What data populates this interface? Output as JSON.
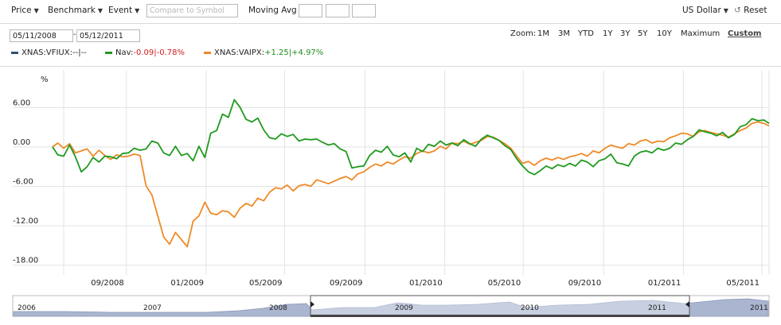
{
  "toolbar": {
    "price_label": "Price",
    "benchmark_label": "Benchmark",
    "event_label": "Event",
    "compare_placeholder": "Compare to Symbol",
    "moving_avg_label": "Moving Avg",
    "currency_label": "US Dollar",
    "reset_label": "Reset"
  },
  "date_range": {
    "start": "05/11/2008",
    "end": "05/12/2011",
    "dash": "-"
  },
  "zoom": {
    "label": "Zoom:",
    "options": [
      "1M",
      "3M",
      "YTD",
      "1Y",
      "3Y",
      "5Y",
      "10Y",
      "Maximum",
      "Custom"
    ],
    "active": "Custom"
  },
  "legend": [
    {
      "symbol": "XNAS:VFIUX:",
      "value_text": "--|--",
      "color": "#2f4f6f",
      "value_class": ""
    },
    {
      "symbol": "Nav:",
      "value_text": "-0.09|-0.78%",
      "color": "#1f9a1f",
      "value_class": "neg"
    },
    {
      "symbol": "XNAS:VAIPX:",
      "value_text": "+1.25|+4.97%",
      "color": "#ef8a28",
      "value_class": "pos"
    }
  ],
  "colors": {
    "nav": "#1f9a1f",
    "vaipx": "#ef8a28",
    "vfiux": "#2f4f6f",
    "grid": "#e3e3e3",
    "nav_fill": "#aab5cf"
  },
  "chart_data": {
    "type": "line",
    "ylabel": "%",
    "ylim": [
      -19,
      11
    ],
    "yticks": [
      6,
      0,
      -6,
      -12,
      -18
    ],
    "ytick_labels": [
      "6.00",
      "0.00",
      "-6.00",
      "-12.00",
      "-18.00"
    ],
    "xlim": [
      "2008-05-11",
      "2011-05-12"
    ],
    "xticks": [
      "2008-09-01",
      "2009-01-01",
      "2009-05-01",
      "2009-09-01",
      "2010-01-01",
      "2010-05-01",
      "2010-09-01",
      "2011-01-01",
      "2011-05-01"
    ],
    "xtick_labels": [
      "09/2008",
      "01/2009",
      "05/2009",
      "09/2009",
      "01/2010",
      "05/2010",
      "09/2010",
      "01/2011",
      "05/2011"
    ],
    "grid": true,
    "legend_position": "top-left",
    "series": [
      {
        "name": "Nav",
        "color": "#1f9a1f",
        "points": [
          [
            "2008-05-11",
            0
          ],
          [
            "2008-05-19",
            -1.2
          ],
          [
            "2008-05-28",
            -1.4
          ],
          [
            "2008-06-06",
            0.3
          ],
          [
            "2008-06-15",
            -1.5
          ],
          [
            "2008-06-24",
            -3.8
          ],
          [
            "2008-07-03",
            -3.0
          ],
          [
            "2008-07-12",
            -1.6
          ],
          [
            "2008-07-21",
            -2.3
          ],
          [
            "2008-07-30",
            -1.4
          ],
          [
            "2008-08-08",
            -1.5
          ],
          [
            "2008-08-17",
            -1.8
          ],
          [
            "2008-08-26",
            -1.0
          ],
          [
            "2008-09-04",
            -0.9
          ],
          [
            "2008-09-13",
            -0.2
          ],
          [
            "2008-09-22",
            -0.5
          ],
          [
            "2008-10-01",
            -0.3
          ],
          [
            "2008-10-10",
            0.9
          ],
          [
            "2008-10-19",
            0.6
          ],
          [
            "2008-10-28",
            -0.9
          ],
          [
            "2008-11-06",
            -1.3
          ],
          [
            "2008-11-15",
            0.1
          ],
          [
            "2008-11-24",
            -1.3
          ],
          [
            "2008-12-03",
            -1.0
          ],
          [
            "2008-12-12",
            -2.1
          ],
          [
            "2008-12-21",
            0.1
          ],
          [
            "2008-12-30",
            -1.6
          ],
          [
            "2009-01-08",
            2.1
          ],
          [
            "2009-01-17",
            2.5
          ],
          [
            "2009-01-26",
            5.0
          ],
          [
            "2009-02-04",
            4.5
          ],
          [
            "2009-02-13",
            7.2
          ],
          [
            "2009-02-22",
            6.0
          ],
          [
            "2009-03-03",
            4.2
          ],
          [
            "2009-03-12",
            3.8
          ],
          [
            "2009-03-21",
            4.4
          ],
          [
            "2009-03-30",
            2.6
          ],
          [
            "2009-04-08",
            1.4
          ],
          [
            "2009-04-17",
            1.2
          ],
          [
            "2009-04-26",
            2.0
          ],
          [
            "2009-05-05",
            1.6
          ],
          [
            "2009-05-14",
            1.9
          ],
          [
            "2009-05-23",
            0.9
          ],
          [
            "2009-06-01",
            1.2
          ],
          [
            "2009-06-10",
            1.1
          ],
          [
            "2009-06-19",
            1.2
          ],
          [
            "2009-06-28",
            0.7
          ],
          [
            "2009-07-07",
            0.3
          ],
          [
            "2009-07-16",
            0.5
          ],
          [
            "2009-07-25",
            -0.3
          ],
          [
            "2009-08-03",
            -0.7
          ],
          [
            "2009-08-12",
            -3.2
          ],
          [
            "2009-08-21",
            -3.0
          ],
          [
            "2009-08-30",
            -2.9
          ],
          [
            "2009-09-08",
            -1.3
          ],
          [
            "2009-09-17",
            -0.5
          ],
          [
            "2009-09-26",
            -0.8
          ],
          [
            "2009-10-05",
            0.1
          ],
          [
            "2009-10-14",
            -1.2
          ],
          [
            "2009-10-23",
            -1.5
          ],
          [
            "2009-11-01",
            -0.9
          ],
          [
            "2009-11-10",
            -2.3
          ],
          [
            "2009-11-19",
            -0.2
          ],
          [
            "2009-11-28",
            -0.7
          ],
          [
            "2009-12-07",
            0.4
          ],
          [
            "2009-12-16",
            0.1
          ],
          [
            "2009-12-25",
            0.9
          ],
          [
            "2010-01-03",
            0.3
          ],
          [
            "2010-01-12",
            0.6
          ],
          [
            "2010-01-21",
            0.2
          ],
          [
            "2010-01-30",
            1.1
          ],
          [
            "2010-02-08",
            0.5
          ],
          [
            "2010-02-17",
            0.1
          ],
          [
            "2010-02-26",
            1.2
          ],
          [
            "2010-03-07",
            1.8
          ],
          [
            "2010-03-16",
            1.4
          ],
          [
            "2010-03-25",
            1.0
          ],
          [
            "2010-04-03",
            0.2
          ],
          [
            "2010-04-12",
            -0.4
          ],
          [
            "2010-04-21",
            -1.8
          ],
          [
            "2010-04-30",
            -2.9
          ],
          [
            "2010-05-09",
            -3.8
          ],
          [
            "2010-05-18",
            -4.2
          ],
          [
            "2010-05-27",
            -3.6
          ],
          [
            "2010-06-05",
            -2.9
          ],
          [
            "2010-06-14",
            -3.3
          ],
          [
            "2010-06-23",
            -2.7
          ],
          [
            "2010-07-02",
            -3.0
          ],
          [
            "2010-07-11",
            -2.5
          ],
          [
            "2010-07-20",
            -2.9
          ],
          [
            "2010-07-29",
            -2.0
          ],
          [
            "2010-08-07",
            -2.3
          ],
          [
            "2010-08-16",
            -3.0
          ],
          [
            "2010-08-25",
            -2.1
          ],
          [
            "2010-09-03",
            -1.8
          ],
          [
            "2010-09-12",
            -1.1
          ],
          [
            "2010-09-21",
            -2.4
          ],
          [
            "2010-09-30",
            -2.6
          ],
          [
            "2010-10-09",
            -2.9
          ],
          [
            "2010-10-18",
            -1.4
          ],
          [
            "2010-10-27",
            -0.8
          ],
          [
            "2010-11-05",
            -0.6
          ],
          [
            "2010-11-14",
            -0.9
          ],
          [
            "2010-11-23",
            -0.2
          ],
          [
            "2010-12-02",
            -0.5
          ],
          [
            "2010-12-11",
            -0.2
          ],
          [
            "2010-12-20",
            0.6
          ],
          [
            "2010-12-29",
            0.4
          ],
          [
            "2011-01-07",
            1.1
          ],
          [
            "2011-01-16",
            1.6
          ],
          [
            "2011-01-25",
            2.6
          ],
          [
            "2011-02-03",
            2.3
          ],
          [
            "2011-02-12",
            2.1
          ],
          [
            "2011-02-21",
            1.7
          ],
          [
            "2011-03-02",
            2.2
          ],
          [
            "2011-03-11",
            1.4
          ],
          [
            "2011-03-20",
            1.9
          ],
          [
            "2011-03-29",
            3.1
          ],
          [
            "2011-04-07",
            3.4
          ],
          [
            "2011-04-16",
            4.3
          ],
          [
            "2011-04-25",
            4.0
          ],
          [
            "2011-05-04",
            4.1
          ],
          [
            "2011-05-12",
            3.6
          ]
        ]
      },
      {
        "name": "XNAS:VAIPX",
        "color": "#ef8a28",
        "points": [
          [
            "2008-05-11",
            0
          ],
          [
            "2008-05-19",
            0.6
          ],
          [
            "2008-05-28",
            -0.2
          ],
          [
            "2008-06-06",
            0.5
          ],
          [
            "2008-06-15",
            -0.9
          ],
          [
            "2008-06-24",
            -0.6
          ],
          [
            "2008-07-03",
            -0.3
          ],
          [
            "2008-07-12",
            -1.4
          ],
          [
            "2008-07-21",
            -0.5
          ],
          [
            "2008-07-30",
            -1.3
          ],
          [
            "2008-08-08",
            -1.9
          ],
          [
            "2008-08-17",
            -1.2
          ],
          [
            "2008-08-26",
            -1.5
          ],
          [
            "2008-09-04",
            -1.4
          ],
          [
            "2008-09-13",
            -1.1
          ],
          [
            "2008-09-22",
            -1.3
          ],
          [
            "2008-10-01",
            -5.9
          ],
          [
            "2008-10-10",
            -7.3
          ],
          [
            "2008-10-19",
            -10.5
          ],
          [
            "2008-10-28",
            -13.7
          ],
          [
            "2008-11-06",
            -14.8
          ],
          [
            "2008-11-15",
            -13.0
          ],
          [
            "2008-11-24",
            -14.1
          ],
          [
            "2008-12-03",
            -15.2
          ],
          [
            "2008-12-12",
            -11.3
          ],
          [
            "2008-12-21",
            -10.5
          ],
          [
            "2008-12-30",
            -8.4
          ],
          [
            "2009-01-08",
            -10.1
          ],
          [
            "2009-01-17",
            -10.3
          ],
          [
            "2009-01-26",
            -9.7
          ],
          [
            "2009-02-04",
            -9.9
          ],
          [
            "2009-02-13",
            -10.7
          ],
          [
            "2009-02-22",
            -9.3
          ],
          [
            "2009-03-03",
            -8.6
          ],
          [
            "2009-03-12",
            -9.0
          ],
          [
            "2009-03-21",
            -7.8
          ],
          [
            "2009-03-30",
            -8.2
          ],
          [
            "2009-04-08",
            -6.9
          ],
          [
            "2009-04-17",
            -6.2
          ],
          [
            "2009-04-26",
            -6.4
          ],
          [
            "2009-05-05",
            -5.8
          ],
          [
            "2009-05-14",
            -6.7
          ],
          [
            "2009-05-23",
            -5.9
          ],
          [
            "2009-06-01",
            -5.7
          ],
          [
            "2009-06-10",
            -6.0
          ],
          [
            "2009-06-19",
            -5.0
          ],
          [
            "2009-06-28",
            -5.3
          ],
          [
            "2009-07-07",
            -5.6
          ],
          [
            "2009-07-16",
            -5.2
          ],
          [
            "2009-07-25",
            -4.8
          ],
          [
            "2009-08-03",
            -4.5
          ],
          [
            "2009-08-12",
            -5.0
          ],
          [
            "2009-08-21",
            -4.1
          ],
          [
            "2009-08-30",
            -3.8
          ],
          [
            "2009-09-08",
            -3.1
          ],
          [
            "2009-09-17",
            -2.6
          ],
          [
            "2009-09-26",
            -2.9
          ],
          [
            "2009-10-05",
            -2.3
          ],
          [
            "2009-10-14",
            -2.6
          ],
          [
            "2009-10-23",
            -2.0
          ],
          [
            "2009-11-01",
            -1.5
          ],
          [
            "2009-11-10",
            -1.7
          ],
          [
            "2009-11-19",
            -1.0
          ],
          [
            "2009-11-28",
            -0.6
          ],
          [
            "2009-12-07",
            -0.9
          ],
          [
            "2009-12-16",
            -0.6
          ],
          [
            "2009-12-25",
            0.1
          ],
          [
            "2010-01-03",
            -0.3
          ],
          [
            "2010-01-12",
            0.6
          ],
          [
            "2010-01-21",
            0.5
          ],
          [
            "2010-01-30",
            0.9
          ],
          [
            "2010-02-08",
            0.4
          ],
          [
            "2010-02-17",
            0.7
          ],
          [
            "2010-02-26",
            1.0
          ],
          [
            "2010-03-07",
            1.6
          ],
          [
            "2010-03-16",
            1.5
          ],
          [
            "2010-03-25",
            1.0
          ],
          [
            "2010-04-03",
            0.5
          ],
          [
            "2010-04-12",
            -0.2
          ],
          [
            "2010-04-21",
            -1.4
          ],
          [
            "2010-04-30",
            -2.5
          ],
          [
            "2010-05-09",
            -2.2
          ],
          [
            "2010-05-18",
            -2.8
          ],
          [
            "2010-05-27",
            -2.1
          ],
          [
            "2010-06-05",
            -1.7
          ],
          [
            "2010-06-14",
            -2.0
          ],
          [
            "2010-06-23",
            -1.6
          ],
          [
            "2010-07-02",
            -1.9
          ],
          [
            "2010-07-11",
            -1.5
          ],
          [
            "2010-07-20",
            -1.3
          ],
          [
            "2010-07-29",
            -1.0
          ],
          [
            "2010-08-07",
            -1.4
          ],
          [
            "2010-08-16",
            -0.6
          ],
          [
            "2010-08-25",
            -0.9
          ],
          [
            "2010-09-03",
            -0.2
          ],
          [
            "2010-09-12",
            0.3
          ],
          [
            "2010-09-21",
            0.0
          ],
          [
            "2010-09-30",
            -0.2
          ],
          [
            "2010-10-09",
            0.5
          ],
          [
            "2010-10-18",
            0.3
          ],
          [
            "2010-10-27",
            0.9
          ],
          [
            "2010-11-05",
            1.1
          ],
          [
            "2010-11-14",
            0.6
          ],
          [
            "2010-11-23",
            0.9
          ],
          [
            "2010-12-02",
            0.8
          ],
          [
            "2010-12-11",
            1.4
          ],
          [
            "2010-12-20",
            1.7
          ],
          [
            "2010-12-29",
            2.1
          ],
          [
            "2011-01-07",
            2.0
          ],
          [
            "2011-01-16",
            1.6
          ],
          [
            "2011-01-25",
            2.3
          ],
          [
            "2011-02-03",
            2.5
          ],
          [
            "2011-02-12",
            2.2
          ],
          [
            "2011-02-21",
            2.0
          ],
          [
            "2011-03-02",
            1.8
          ],
          [
            "2011-03-11",
            1.5
          ],
          [
            "2011-03-20",
            2.0
          ],
          [
            "2011-03-29",
            2.5
          ],
          [
            "2011-04-07",
            2.9
          ],
          [
            "2011-04-16",
            3.6
          ],
          [
            "2011-04-25",
            3.8
          ],
          [
            "2011-05-04",
            3.6
          ],
          [
            "2011-05-12",
            3.2
          ]
        ]
      }
    ]
  },
  "navigator": {
    "year_labels": [
      "2006",
      "2007",
      "2008",
      "2009",
      "2010",
      "2011",
      "2011"
    ],
    "fill_color": "#aab5cf"
  }
}
